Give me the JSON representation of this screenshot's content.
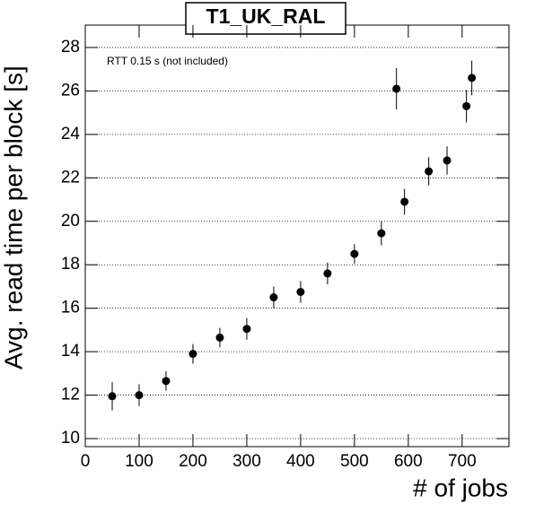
{
  "chart_data": {
    "type": "scatter",
    "title": "T1_UK_RAL",
    "annotation": "RTT 0.15 s (not included)",
    "x_label": "# of jobs",
    "y_label": "Avg. read time per block [s]",
    "color": "#000000",
    "grid": true,
    "xlim": [
      0,
      787
    ],
    "ylim": [
      9.63,
      29.03
    ],
    "xticks": [
      0,
      100,
      200,
      300,
      400,
      500,
      600,
      700
    ],
    "yticks": [
      10,
      12,
      14,
      16,
      18,
      20,
      22,
      24,
      26,
      28
    ],
    "x": [
      50,
      100,
      150,
      200,
      250,
      300,
      350,
      400,
      450,
      500,
      550,
      578,
      593,
      638,
      672,
      708,
      718
    ],
    "values": [
      11.95,
      12.0,
      12.65,
      13.9,
      14.65,
      15.05,
      16.5,
      16.75,
      17.6,
      18.5,
      19.45,
      26.1,
      20.9,
      22.3,
      22.8,
      25.3,
      26.6
    ],
    "errors": [
      0.65,
      0.5,
      0.45,
      0.45,
      0.45,
      0.5,
      0.5,
      0.5,
      0.5,
      0.45,
      0.55,
      0.95,
      0.6,
      0.65,
      0.65,
      0.75,
      0.8
    ]
  }
}
